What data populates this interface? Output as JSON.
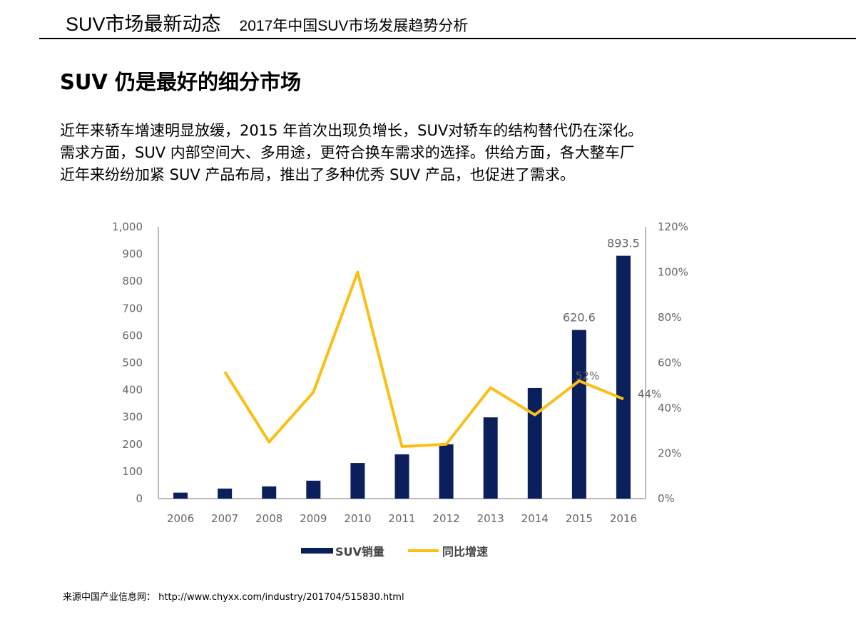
{
  "header": {
    "title": "SUV市场最新动态",
    "subtitle": "2017年中国SUV市场发展趋势分析"
  },
  "heading": "SUV 仍是最好的细分市场",
  "paragraph": [
    "近年来轿车增速明显放缓，2015 年首次出现负增长，SUV对轿车的结构替代仍在深化。",
    "需求方面，SUV 内部空间大、多用途，更符合换车需求的选择。供给方面，各大整车厂",
    "近年来纷纷加紧 SUV 产品布局，推出了多种优秀 SUV 产品，也促进了需求。"
  ],
  "source": {
    "label": "来源中国产业信息网：",
    "url": "http://www.chyxx.com/industry/201704/515830.html"
  },
  "chart_data": {
    "type": "bar+line",
    "categories": [
      "2006",
      "2007",
      "2008",
      "2009",
      "2010",
      "2011",
      "2012",
      "2013",
      "2014",
      "2015",
      "2016"
    ],
    "series": [
      {
        "name": "SUV销量",
        "type": "bar",
        "axis": "left",
        "color": "#0b1f5c",
        "values": [
          22,
          37,
          45,
          66,
          131,
          163,
          200,
          299,
          407,
          620.6,
          893.5
        ]
      },
      {
        "name": "同比增速",
        "type": "line",
        "axis": "right",
        "color": "#fbbf14",
        "values": [
          null,
          56,
          25,
          47,
          100,
          23,
          24,
          49,
          37,
          52,
          44
        ]
      }
    ],
    "data_labels": [
      {
        "category": "2015",
        "text": "620.6"
      },
      {
        "category": "2016",
        "text": "893.5"
      },
      {
        "category": "2015",
        "text": "52%"
      },
      {
        "category": "2016",
        "text": "44%"
      }
    ],
    "left_axis": {
      "ylim": [
        0,
        1000
      ],
      "ticks": [
        "0",
        "100",
        "200",
        "300",
        "400",
        "500",
        "600",
        "700",
        "800",
        "900",
        "1,000"
      ]
    },
    "right_axis": {
      "ylim": [
        0,
        120
      ],
      "ticks": [
        "0%",
        "20%",
        "40%",
        "60%",
        "80%",
        "100%",
        "120%"
      ]
    },
    "grid": false,
    "legend": "bottom"
  }
}
